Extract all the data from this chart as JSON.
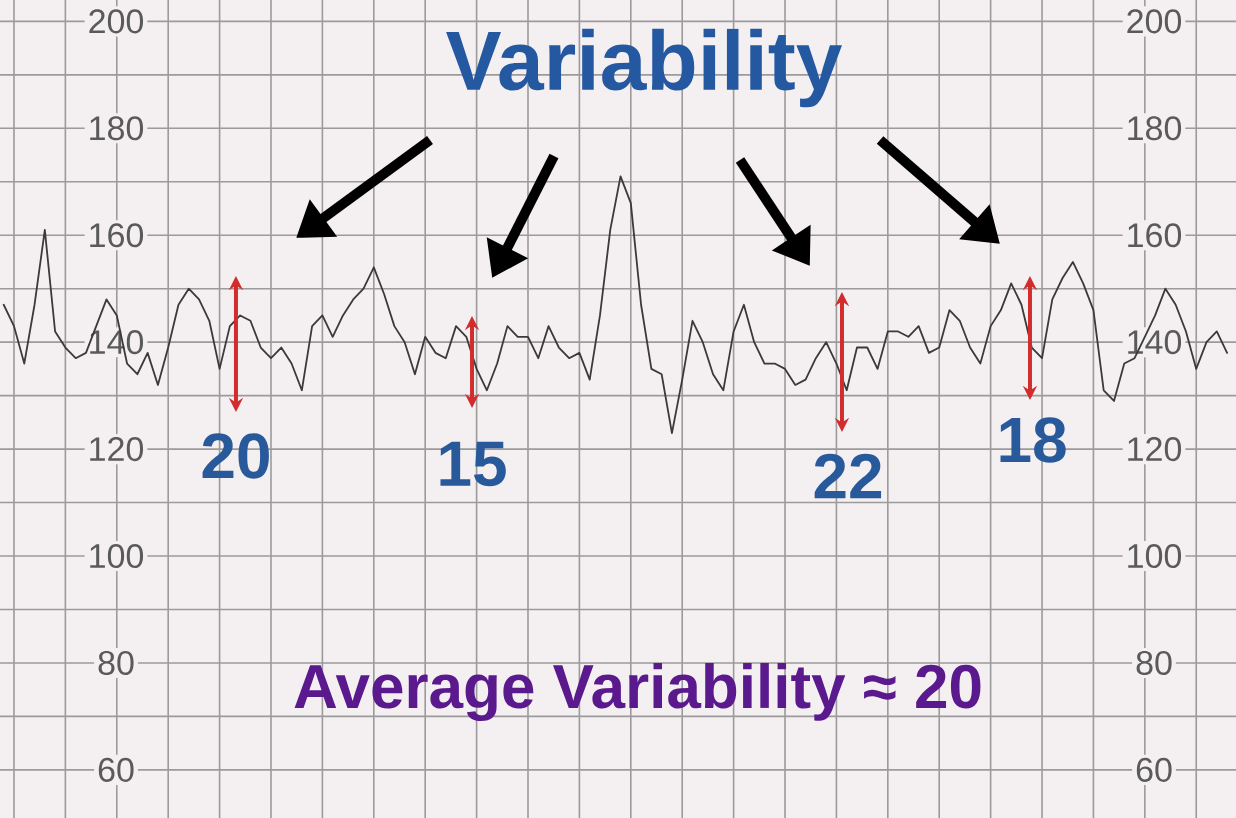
{
  "chart_data": {
    "type": "line",
    "title": "Variability",
    "annotations": [
      "20",
      "15",
      "22",
      "18",
      "Average Variability ≈ 20"
    ],
    "categories": [
      null,
      null,
      null,
      null,
      null,
      null,
      null,
      null,
      null,
      null,
      null,
      null,
      null,
      null,
      null,
      null,
      null,
      null,
      null,
      null,
      null,
      null,
      null,
      null,
      null,
      null,
      null,
      null,
      null,
      null,
      null,
      null,
      null,
      null,
      null,
      null,
      null,
      null,
      null,
      null,
      null,
      null,
      null,
      null,
      null,
      null,
      null,
      null,
      null,
      null,
      null,
      null,
      null,
      null,
      null,
      null,
      null,
      null,
      null,
      null,
      null,
      null,
      null,
      null,
      null,
      null,
      null,
      null,
      null,
      null,
      null,
      null,
      null,
      null,
      null,
      null,
      null,
      null,
      null,
      null,
      null,
      null,
      null,
      null,
      null,
      null,
      null,
      null,
      null,
      null,
      null,
      null,
      null,
      null,
      null,
      null,
      null,
      null,
      null,
      null,
      null,
      null,
      null,
      null,
      null,
      null,
      null,
      null,
      null,
      null,
      null,
      null,
      null,
      null,
      null,
      null,
      null,
      null,
      null,
      null
    ],
    "series": [
      {
        "color": "#3a3a3a",
        "values": [
          147,
          143,
          136,
          147,
          161,
          142,
          139,
          137,
          138,
          143,
          148,
          145,
          136,
          134,
          138,
          132,
          139,
          147,
          150,
          148,
          144,
          135,
          143,
          145,
          144,
          139,
          137,
          139,
          136,
          131,
          143,
          145,
          141,
          145,
          148,
          150,
          154,
          149,
          143,
          140,
          134,
          141,
          138,
          137,
          143,
          141,
          135,
          131,
          136,
          143,
          141,
          141,
          137,
          143,
          139,
          137,
          138,
          133,
          145,
          161,
          171,
          166,
          147,
          135,
          134,
          123,
          133,
          144,
          140,
          134,
          131,
          142,
          147,
          140,
          136,
          136,
          135,
          132,
          133,
          137,
          140,
          136,
          131,
          139,
          139,
          135,
          142,
          142,
          141,
          143,
          138,
          139,
          146,
          144,
          139,
          136,
          143,
          146,
          151,
          147,
          139,
          137,
          148,
          152,
          155,
          151,
          146,
          131,
          129,
          136,
          137,
          141,
          145,
          150,
          147,
          142,
          135,
          140,
          142,
          138
        ]
      }
    ],
    "ylim": [
      51,
      204
    ],
    "yticks": [
      60,
      80,
      100,
      120,
      140,
      160,
      180,
      200
    ],
    "y2lim": [
      51,
      204
    ],
    "y2ticks": [
      60,
      80,
      100,
      120,
      140,
      160,
      180,
      200
    ],
    "grid": true,
    "marker": "none",
    "line_style": "solid"
  }
}
